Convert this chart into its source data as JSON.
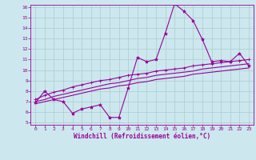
{
  "xlabel": "Windchill (Refroidissement éolien,°C)",
  "bg_color": "#cce8ee",
  "grid_color": "#aacccc",
  "line_color": "#990099",
  "x_min": 0,
  "x_max": 23,
  "y_min": 5,
  "y_max": 16,
  "x_ticks": [
    0,
    1,
    2,
    3,
    4,
    5,
    6,
    7,
    8,
    9,
    10,
    11,
    12,
    13,
    14,
    15,
    16,
    17,
    18,
    19,
    20,
    21,
    22,
    23
  ],
  "y_ticks": [
    5,
    6,
    7,
    8,
    9,
    10,
    11,
    12,
    13,
    14,
    15,
    16
  ],
  "series1_x": [
    0,
    1,
    2,
    3,
    4,
    5,
    6,
    7,
    8,
    9,
    10,
    11,
    12,
    13,
    14,
    15,
    16,
    17,
    18,
    19,
    20,
    21,
    22,
    23
  ],
  "series1_y": [
    6.9,
    8.0,
    7.2,
    7.0,
    5.9,
    6.3,
    6.5,
    6.7,
    5.5,
    5.5,
    8.3,
    11.2,
    10.8,
    11.0,
    13.5,
    16.3,
    15.6,
    14.7,
    12.9,
    10.8,
    10.9,
    10.8,
    11.6,
    10.4
  ],
  "series2_x": [
    0,
    1,
    2,
    3,
    4,
    5,
    6,
    7,
    8,
    9,
    10,
    11,
    12,
    13,
    14,
    15,
    16,
    17,
    18,
    19,
    20,
    21,
    22,
    23
  ],
  "series2_y": [
    7.2,
    7.6,
    7.9,
    8.1,
    8.4,
    8.6,
    8.8,
    9.0,
    9.1,
    9.3,
    9.5,
    9.6,
    9.7,
    9.9,
    10.0,
    10.1,
    10.2,
    10.4,
    10.5,
    10.6,
    10.7,
    10.8,
    10.9,
    11.0
  ],
  "series3_x": [
    0,
    1,
    2,
    3,
    4,
    5,
    6,
    7,
    8,
    9,
    10,
    11,
    12,
    13,
    14,
    15,
    16,
    17,
    18,
    19,
    20,
    21,
    22,
    23
  ],
  "series3_y": [
    7.0,
    7.2,
    7.5,
    7.7,
    7.9,
    8.1,
    8.3,
    8.5,
    8.7,
    8.8,
    9.0,
    9.2,
    9.3,
    9.5,
    9.6,
    9.7,
    9.8,
    9.9,
    10.1,
    10.2,
    10.3,
    10.4,
    10.5,
    10.6
  ],
  "series4_x": [
    0,
    1,
    2,
    3,
    4,
    5,
    6,
    7,
    8,
    9,
    10,
    11,
    12,
    13,
    14,
    15,
    16,
    17,
    18,
    19,
    20,
    21,
    22,
    23
  ],
  "series4_y": [
    6.8,
    7.0,
    7.2,
    7.4,
    7.6,
    7.8,
    8.0,
    8.2,
    8.3,
    8.5,
    8.6,
    8.8,
    8.9,
    9.1,
    9.2,
    9.3,
    9.4,
    9.6,
    9.7,
    9.8,
    9.9,
    10.0,
    10.1,
    10.2
  ]
}
